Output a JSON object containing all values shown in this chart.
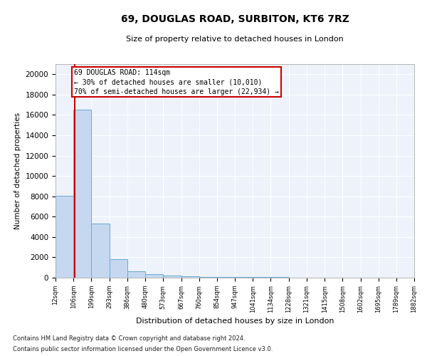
{
  "title": "69, DOUGLAS ROAD, SURBITON, KT6 7RZ",
  "subtitle": "Size of property relative to detached houses in London",
  "xlabel": "Distribution of detached houses by size in London",
  "ylabel": "Number of detached properties",
  "bar_color": "#c5d8f0",
  "bar_edge_color": "#6aaad4",
  "background_color": "#edf2fb",
  "grid_color": "#ffffff",
  "annotation_box_color": "#cc0000",
  "property_line_color": "#cc0000",
  "property_value": 114,
  "annotation_title": "69 DOUGLAS ROAD: 114sqm",
  "annotation_line1": "← 30% of detached houses are smaller (10,010)",
  "annotation_line2": "70% of semi-detached houses are larger (22,934) →",
  "footer_line1": "Contains HM Land Registry data © Crown copyright and database right 2024.",
  "footer_line2": "Contains public sector information licensed under the Open Government Licence v3.0.",
  "bin_edges": [
    12,
    106,
    199,
    293,
    386,
    480,
    573,
    667,
    760,
    854,
    947,
    1041,
    1134,
    1228,
    1321,
    1415,
    1508,
    1602,
    1695,
    1789,
    1882
  ],
  "bin_heights": [
    8050,
    16500,
    5300,
    1800,
    650,
    350,
    200,
    150,
    100,
    80,
    60,
    50,
    40,
    35,
    25,
    20,
    18,
    15,
    12,
    10
  ],
  "ylim": [
    0,
    21000
  ],
  "yticks": [
    0,
    2000,
    4000,
    6000,
    8000,
    10000,
    12000,
    14000,
    16000,
    18000,
    20000
  ]
}
